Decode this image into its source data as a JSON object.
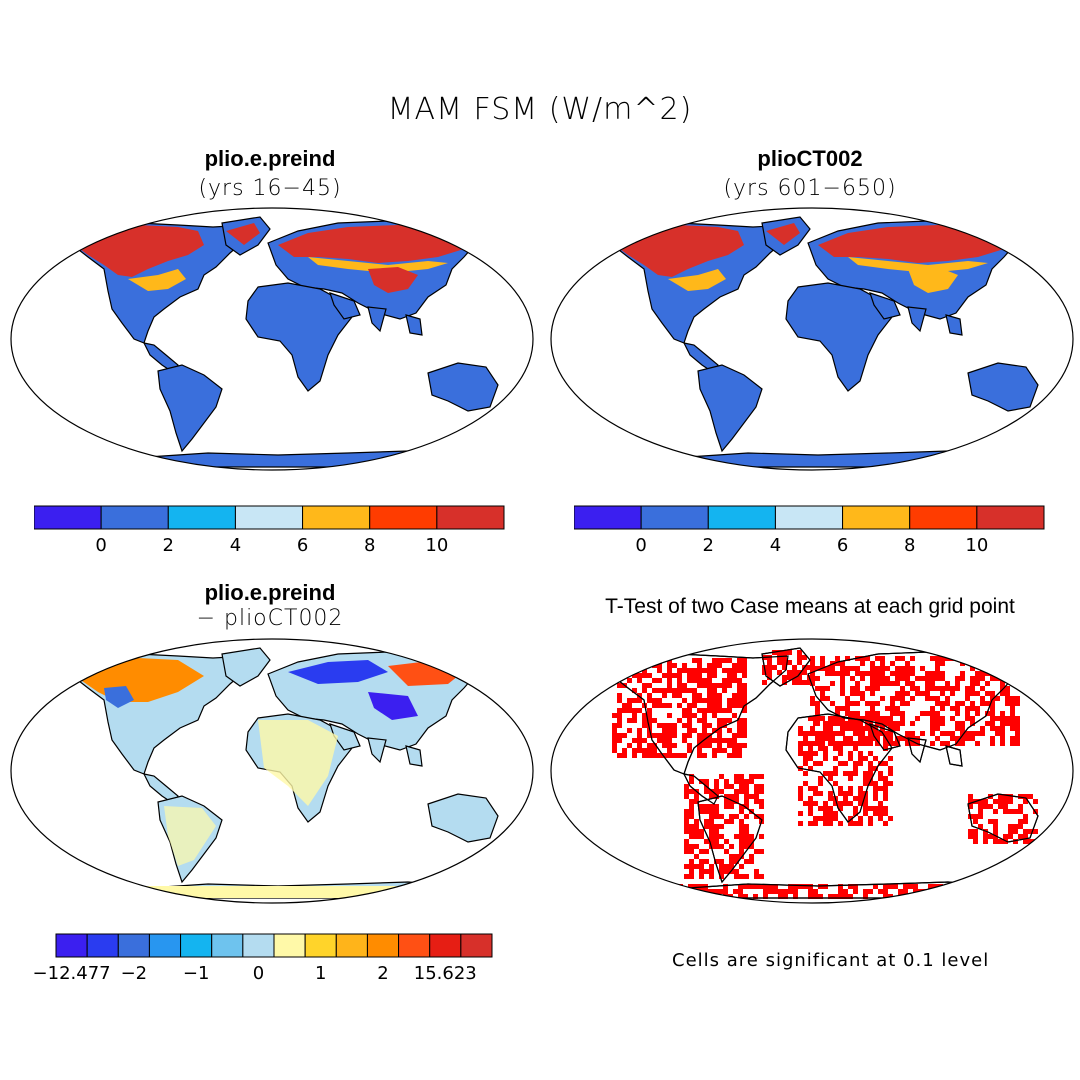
{
  "figure": {
    "title": "MAM FSM (W/m^2)",
    "panels": [
      {
        "title": "plio.e.preind",
        "subtitle": "(yrs 16−45)"
      },
      {
        "title": "plioCT002",
        "subtitle": "(yrs 601−650)"
      },
      {
        "title": "plio.e.preind",
        "subtitle": "− plioCT002"
      },
      {
        "title": "T-Test of two Case means at each grid point",
        "subtitle": ""
      }
    ],
    "significance_note": "Cells are significant at 0.1 level"
  },
  "colorbars": {
    "field": {
      "colors": [
        "#3b1ff0",
        "#3a6fdc",
        "#14b4f0",
        "#c8e6f5",
        "#ffb81a",
        "#ff3c00",
        "#d7302a"
      ],
      "tick_labels": [
        "0",
        "2",
        "4",
        "6",
        "8",
        "10"
      ]
    },
    "difference": {
      "colors": [
        "#3b1ff0",
        "#2a3cf0",
        "#3a6fdc",
        "#2896f0",
        "#14b4f0",
        "#6ec3ee",
        "#b4dcf0",
        "#fff9a8",
        "#ffd42a",
        "#ffb41a",
        "#ff8c00",
        "#ff5014",
        "#e61e14",
        "#d7302a"
      ],
      "tick_labels": [
        "−12.477",
        "−2",
        "−1",
        "0",
        "1",
        "2",
        "15.623"
      ]
    }
  },
  "colors": {
    "ocean": "#ffffff",
    "land_field": "#3a6fdc",
    "snow_high": "#d7302a",
    "snow_mid": "#ffb81a",
    "diff_land": "#b4dcf0",
    "diff_pos": "#fff9a8",
    "significant": "#ff0000"
  }
}
